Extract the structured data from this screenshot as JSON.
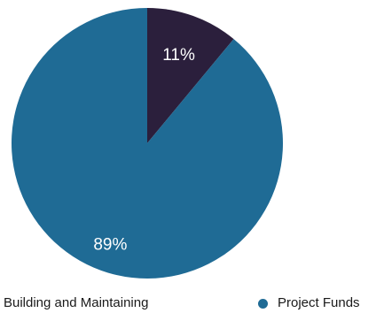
{
  "chart_data": {
    "type": "pie",
    "slices": [
      {
        "name": "Building and Maintaining",
        "value": 11,
        "label": "11%",
        "color": "#2b1f3c"
      },
      {
        "name": "Project Funds",
        "value": 89,
        "label": "89%",
        "color": "#1f6b95"
      }
    ],
    "start_angle_deg": 0,
    "direction": "clockwise",
    "legend_position": "bottom"
  }
}
